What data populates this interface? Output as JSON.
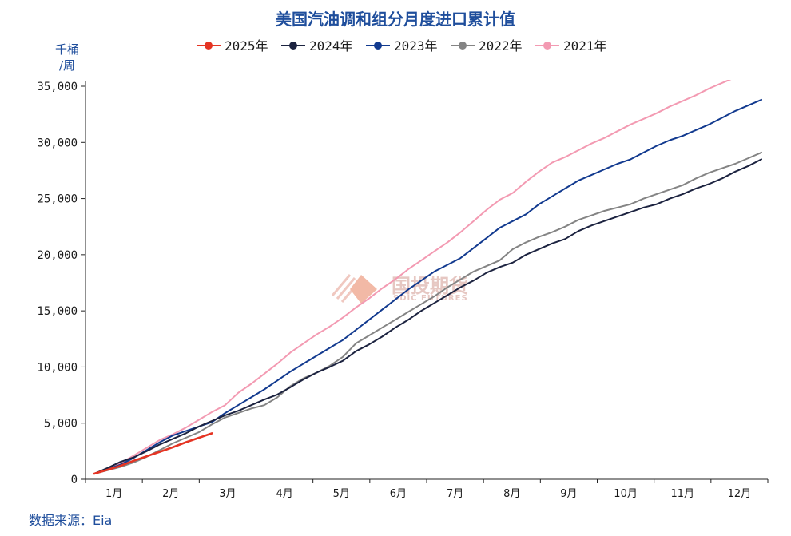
{
  "chart_data": {
    "type": "line",
    "title": "美国汽油调和组分月度进口累计值",
    "ylabel_line1": "千桶",
    "ylabel_line2": "/周",
    "ylim": [
      0,
      35000
    ],
    "ytick_labels": [
      "0",
      "5,000",
      "10,000",
      "15,000",
      "20,000",
      "25,000",
      "30,000",
      "35,000"
    ],
    "categories": [
      "1月",
      "2月",
      "3月",
      "4月",
      "5月",
      "6月",
      "7月",
      "8月",
      "9月",
      "10月",
      "11月",
      "12月"
    ],
    "x_unit": "week of year (1-52)",
    "legend_position": "top-center",
    "series": [
      {
        "name": "2025年",
        "color": "#e53423",
        "x": [
          1,
          2,
          3,
          4,
          5,
          6,
          7,
          8,
          9,
          10
        ],
        "values": [
          500,
          850,
          1200,
          1650,
          2050,
          2450,
          2850,
          3300,
          3700,
          4100
        ]
      },
      {
        "name": "2024年",
        "color": "#1c2340",
        "x": [
          1,
          2,
          3,
          4,
          5,
          6,
          7,
          8,
          9,
          10,
          11,
          12,
          13,
          14,
          15,
          16,
          17,
          18,
          19,
          20,
          21,
          22,
          23,
          24,
          25,
          26,
          27,
          28,
          29,
          30,
          31,
          32,
          33,
          34,
          35,
          36,
          37,
          38,
          39,
          40,
          41,
          42,
          43,
          44,
          45,
          46,
          47,
          48,
          49,
          50,
          51,
          52
        ],
        "values": [
          500,
          1000,
          1550,
          1950,
          2500,
          3100,
          3600,
          4100,
          4700,
          5200,
          5700,
          6100,
          6600,
          7100,
          7550,
          8200,
          8900,
          9500,
          10000,
          10550,
          11400,
          12000,
          12700,
          13500,
          14200,
          15000,
          15700,
          16400,
          17100,
          17700,
          18400,
          18900,
          19300,
          20000,
          20500,
          21000,
          21400,
          22100,
          22600,
          23000,
          23400,
          23800,
          24200,
          24500,
          25000,
          25400,
          25900,
          26300,
          26800,
          27400,
          27900,
          28500
        ]
      },
      {
        "name": "2023年",
        "color": "#123a8f",
        "x": [
          1,
          2,
          3,
          4,
          5,
          6,
          7,
          8,
          9,
          10,
          11,
          12,
          13,
          14,
          15,
          16,
          17,
          18,
          19,
          20,
          21,
          22,
          23,
          24,
          25,
          26,
          27,
          28,
          29,
          30,
          31,
          32,
          33,
          34,
          35,
          36,
          37,
          38,
          39,
          40,
          41,
          42,
          43,
          44,
          45,
          46,
          47,
          48,
          49,
          50,
          51,
          52
        ],
        "values": [
          500,
          900,
          1300,
          1900,
          2600,
          3300,
          3900,
          4300,
          4700,
          5100,
          5900,
          6600,
          7300,
          8000,
          8800,
          9600,
          10300,
          11000,
          11700,
          12400,
          13300,
          14200,
          15100,
          16000,
          16900,
          17700,
          18500,
          19100,
          19700,
          20600,
          21500,
          22400,
          23000,
          23600,
          24500,
          25200,
          25900,
          26600,
          27100,
          27600,
          28100,
          28500,
          29100,
          29700,
          30200,
          30600,
          31100,
          31600,
          32200,
          32800,
          33300,
          33800
        ]
      },
      {
        "name": "2022年",
        "color": "#848484",
        "x": [
          1,
          2,
          3,
          4,
          5,
          6,
          7,
          8,
          9,
          10,
          11,
          12,
          13,
          14,
          15,
          16,
          17,
          18,
          19,
          20,
          21,
          22,
          23,
          24,
          25,
          26,
          27,
          28,
          29,
          30,
          31,
          32,
          33,
          34,
          35,
          36,
          37,
          38,
          39,
          40,
          41,
          42,
          43,
          44,
          45,
          46,
          47,
          48,
          49,
          50,
          51,
          52
        ],
        "values": [
          500,
          800,
          1100,
          1500,
          2000,
          2600,
          3200,
          3700,
          4200,
          4900,
          5500,
          5900,
          6300,
          6600,
          7300,
          8300,
          9000,
          9500,
          10100,
          10900,
          12100,
          12800,
          13500,
          14200,
          14900,
          15600,
          16300,
          17100,
          17800,
          18500,
          19000,
          19500,
          20500,
          21100,
          21600,
          22000,
          22500,
          23100,
          23500,
          23900,
          24200,
          24500,
          25000,
          25400,
          25800,
          26200,
          26800,
          27300,
          27700,
          28100,
          28600,
          29100
        ]
      },
      {
        "name": "2021年",
        "color": "#f39ab2",
        "x": [
          1,
          2,
          3,
          4,
          5,
          6,
          7,
          8,
          9,
          10,
          11,
          12,
          13,
          14,
          15,
          16,
          17,
          18,
          19,
          20,
          21,
          22,
          23,
          24,
          25,
          26,
          27,
          28,
          29,
          30,
          31,
          32,
          33,
          34,
          35,
          36,
          37,
          38,
          39,
          40,
          41,
          42,
          43,
          44,
          45,
          46,
          47,
          48,
          49,
          50,
          51,
          52
        ],
        "values": [
          500,
          950,
          1450,
          2100,
          2800,
          3500,
          4000,
          4600,
          5300,
          6000,
          6600,
          7700,
          8500,
          9400,
          10300,
          11300,
          12100,
          12900,
          13600,
          14400,
          15300,
          16100,
          17000,
          17800,
          18700,
          19500,
          20300,
          21100,
          22000,
          23000,
          24000,
          24900,
          25500,
          26500,
          27400,
          28200,
          28700,
          29300,
          29900,
          30400,
          31000,
          31600,
          32100,
          32600,
          33200,
          33700,
          34200,
          34800,
          35300,
          35800,
          36300,
          36800
        ]
      }
    ]
  },
  "watermark": {
    "name": "国投期货",
    "sub": "SDIC FUTURES"
  },
  "source_label": "数据来源：Eia"
}
